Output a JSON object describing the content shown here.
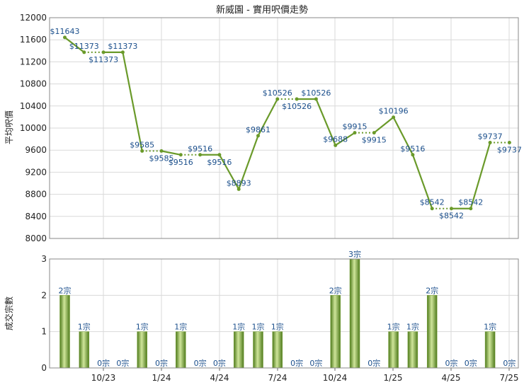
{
  "chart_data": [
    {
      "type": "line",
      "title": "新威園 - 實用呎價走勢",
      "ylabel": "平均呎價",
      "ylim": [
        8000,
        12000
      ],
      "yticks": [
        8000,
        8400,
        8800,
        9200,
        9600,
        10000,
        10400,
        10800,
        11200,
        11600,
        12000
      ],
      "grid": true,
      "line_color": "#6a9a2a",
      "series": [
        {
          "values": [
            11643,
            11373,
            11373,
            11373,
            9585,
            9585,
            9516,
            9516,
            9516,
            8893,
            9861,
            10526,
            10526,
            10526,
            9688,
            9915,
            9915,
            10196,
            9516,
            8542,
            8542,
            8542,
            9737,
            9737
          ],
          "labels": [
            "$11643",
            "$11373",
            "$11373",
            "$11373",
            "$9585",
            "$9585",
            "$9516",
            "$9516",
            "$9516",
            "$8893",
            "$9861",
            "$10526",
            "$10526",
            "$10526",
            "$9688",
            "$9915",
            "$9915",
            "$10196",
            "$9516",
            "$8542",
            "$8542",
            "$8542",
            "$9737",
            "$9737"
          ],
          "carried_forward": [
            false,
            false,
            true,
            false,
            false,
            true,
            false,
            true,
            false,
            false,
            false,
            false,
            true,
            false,
            false,
            false,
            true,
            false,
            false,
            false,
            true,
            false,
            false,
            true
          ]
        }
      ]
    },
    {
      "type": "bar",
      "ylabel": "成交宗數",
      "ylim": [
        0,
        3
      ],
      "yticks": [
        0,
        1,
        2,
        3
      ],
      "grid": true,
      "bar_color": "#7aa33a",
      "values": [
        2,
        1,
        0,
        0,
        1,
        0,
        1,
        0,
        0,
        1,
        1,
        1,
        0,
        0,
        2,
        3,
        0,
        1,
        1,
        2,
        0,
        0,
        1,
        0
      ],
      "labels": [
        "2宗",
        "1宗",
        "0宗",
        "0宗",
        "1宗",
        "0宗",
        "1宗",
        "0宗",
        "0宗",
        "1宗",
        "1宗",
        "1宗",
        "0宗",
        "0宗",
        "2宗",
        "3宗",
        "0宗",
        "1宗",
        "1宗",
        "2宗",
        "0宗",
        "0宗",
        "1宗",
        "0宗"
      ]
    }
  ],
  "x_axis": {
    "tick_labels": [
      "10/23",
      "1/24",
      "4/24",
      "7/24",
      "10/24",
      "1/25",
      "4/25",
      "7/25"
    ]
  }
}
